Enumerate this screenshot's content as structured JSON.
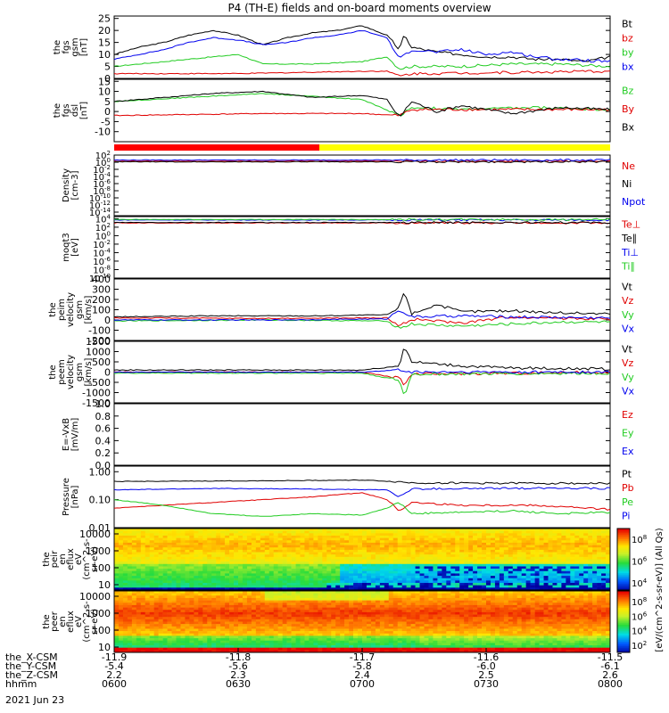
{
  "title": "P4 (TH-E) fields and on-board moments overview",
  "colors": {
    "black": "#000000",
    "red": "#e00000",
    "green": "#22cc22",
    "blue": "#0000ee",
    "yellow": "#ffff00",
    "state_red": "#ff0000"
  },
  "chart_data": [
    {
      "type": "line",
      "panel": "fgs_gsm",
      "ylabel": [
        "the",
        "fgs",
        "gsm",
        "[nT]"
      ],
      "ylim": [
        0,
        26
      ],
      "yticks": [
        "0",
        "5",
        "10",
        "15",
        "20",
        "25"
      ],
      "series": [
        {
          "name": "Bt",
          "color": "#000000",
          "x": [
            0,
            10,
            20,
            30,
            40,
            50,
            60,
            70,
            75,
            80,
            90,
            100,
            110,
            115,
            117,
            120,
            130,
            140,
            150,
            160,
            170,
            180,
            190,
            200
          ],
          "y": [
            10,
            13,
            15,
            18,
            20,
            18,
            14,
            17,
            18,
            19,
            20,
            22,
            18,
            12,
            18,
            13,
            11,
            10,
            9,
            9,
            8,
            8,
            7,
            9
          ]
        },
        {
          "name": "bz",
          "color": "#e00000",
          "x": [
            0,
            50,
            100,
            110,
            115,
            120,
            200
          ],
          "y": [
            2,
            2,
            3,
            3,
            1,
            2,
            3
          ]
        },
        {
          "name": "by",
          "color": "#22cc22",
          "x": [
            0,
            20,
            40,
            50,
            60,
            80,
            100,
            110,
            115,
            120,
            140,
            160,
            180,
            200
          ],
          "y": [
            5,
            7,
            9,
            10,
            6,
            6,
            7,
            9,
            4,
            5,
            5,
            6,
            6,
            5
          ]
        },
        {
          "name": "bx",
          "color": "#0000ee",
          "x": [
            0,
            10,
            20,
            30,
            40,
            50,
            60,
            70,
            80,
            90,
            100,
            110,
            115,
            120,
            130,
            140,
            150,
            160,
            170,
            180,
            200
          ],
          "y": [
            8,
            10,
            12,
            15,
            17,
            16,
            14,
            15,
            17,
            18,
            20,
            17,
            8,
            12,
            11,
            12,
            10,
            11,
            9,
            8,
            7
          ]
        }
      ]
    },
    {
      "type": "line",
      "panel": "fgs_dsl",
      "ylabel": [
        "the",
        "fgs",
        "dsl",
        "[nT]"
      ],
      "ylim": [
        -15,
        16
      ],
      "yticks": [
        "-10",
        "-5",
        "0",
        "5",
        "10",
        "15"
      ],
      "series": [
        {
          "name": "Bz",
          "color": "#22cc22",
          "x": [
            0,
            30,
            60,
            100,
            115,
            120,
            140,
            170,
            200
          ],
          "y": [
            5,
            7,
            9,
            6,
            -2,
            2,
            1,
            2,
            1
          ]
        },
        {
          "name": "By",
          "color": "#e00000",
          "x": [
            0,
            60,
            100,
            115,
            120,
            200
          ],
          "y": [
            -2,
            -1,
            -1,
            -2,
            1,
            1
          ]
        },
        {
          "name": "Bx",
          "color": "#000000",
          "x": [
            0,
            20,
            40,
            60,
            80,
            100,
            110,
            115,
            120,
            130,
            140,
            160,
            180,
            200
          ],
          "y": [
            5,
            7,
            9,
            10,
            7,
            8,
            6,
            -3,
            5,
            0,
            3,
            -1,
            2,
            1
          ]
        }
      ]
    },
    {
      "type": "line",
      "panel": "density",
      "log": true,
      "ylabel": [
        "Density",
        "[cm-3]"
      ],
      "ylim": [
        -15,
        2
      ],
      "yticks": [
        {
          "b": "10",
          "e": "2"
        },
        {
          "b": "10",
          "e": "0"
        },
        {
          "b": "10",
          "e": "-2"
        },
        {
          "b": "10",
          "e": "-4"
        },
        {
          "b": "10",
          "e": "-6"
        },
        {
          "b": "10",
          "e": "-8"
        },
        {
          "b": "10",
          "e": "-10"
        },
        {
          "b": "10",
          "e": "-12"
        },
        {
          "b": "10",
          "e": "-14"
        }
      ],
      "series": [
        {
          "name": "Ne",
          "color": "#e00000",
          "x": [
            0,
            200
          ],
          "y": [
            0.3,
            0.3
          ]
        },
        {
          "name": "Ni",
          "color": "#000000",
          "x": [
            0,
            200
          ],
          "y": [
            0.1,
            0.1
          ]
        },
        {
          "name": "Npot",
          "color": "#0000ee",
          "x": [
            0,
            200
          ],
          "y": [
            0.6,
            0.6
          ]
        }
      ]
    },
    {
      "type": "line",
      "panel": "temperature",
      "log": true,
      "ylabel": [
        "moqt3",
        "[eV]"
      ],
      "ylim": [
        -10,
        4.5
      ],
      "yticks": [
        {
          "b": "10",
          "e": "4"
        },
        {
          "b": "10",
          "e": "2"
        },
        {
          "b": "10",
          "e": "0"
        },
        {
          "b": "10",
          "e": "-2"
        },
        {
          "b": "10",
          "e": "-4"
        },
        {
          "b": "10",
          "e": "-6"
        },
        {
          "b": "10",
          "e": "-8"
        },
        {
          "b": "10",
          "e": "-10"
        }
      ],
      "series": [
        {
          "name": "Te⊥",
          "color": "#e00000",
          "x": [
            0,
            200
          ],
          "y": [
            3.0,
            3.0
          ]
        },
        {
          "name": "Te∥",
          "color": "#000000",
          "x": [
            0,
            200
          ],
          "y": [
            3.1,
            3.1
          ]
        },
        {
          "name": "Ti⊥",
          "color": "#0000ee",
          "x": [
            0,
            200
          ],
          "y": [
            3.7,
            3.7
          ]
        },
        {
          "name": "Ti∥",
          "color": "#22cc22",
          "x": [
            0,
            200
          ],
          "y": [
            3.8,
            3.8
          ]
        }
      ]
    },
    {
      "type": "line",
      "panel": "peim_velocity",
      "ylabel": [
        "the",
        "peim",
        "velocity",
        "gsm",
        "[km/s]"
      ],
      "ylim": [
        -200,
        400
      ],
      "yticks": [
        "-200",
        "-100",
        "0",
        "100",
        "200",
        "300",
        "400"
      ],
      "series": [
        {
          "name": "Vt",
          "color": "#000000",
          "x": [
            0,
            40,
            80,
            110,
            115,
            117,
            120,
            130,
            140,
            160,
            180,
            200
          ],
          "y": [
            30,
            40,
            40,
            50,
            120,
            290,
            60,
            150,
            80,
            90,
            70,
            60
          ]
        },
        {
          "name": "Vz",
          "color": "#e00000",
          "x": [
            0,
            60,
            110,
            115,
            120,
            140,
            160,
            200
          ],
          "y": [
            20,
            15,
            20,
            -60,
            10,
            -30,
            30,
            10
          ]
        },
        {
          "name": "Vy",
          "color": "#22cc22",
          "x": [
            0,
            60,
            110,
            115,
            120,
            140,
            180,
            200
          ],
          "y": [
            -10,
            0,
            -10,
            -80,
            -40,
            -60,
            -20,
            -20
          ]
        },
        {
          "name": "Vx",
          "color": "#0000ee",
          "x": [
            0,
            60,
            110,
            115,
            120,
            140,
            160,
            200
          ],
          "y": [
            0,
            0,
            10,
            100,
            30,
            40,
            30,
            20
          ]
        }
      ]
    },
    {
      "type": "line",
      "panel": "peem_velocity",
      "ylabel": [
        "the",
        "peem",
        "velocity",
        "gsm",
        "[km/s]"
      ],
      "ylim": [
        -1500,
        1500
      ],
      "yticks": [
        "-1500",
        "-1000",
        "-500",
        "0",
        "500",
        "1000",
        "1500"
      ],
      "series": [
        {
          "name": "Vt",
          "color": "#000000",
          "x": [
            0,
            100,
            115,
            117,
            120,
            140,
            160,
            200
          ],
          "y": [
            100,
            100,
            300,
            1300,
            500,
            300,
            200,
            150
          ]
        },
        {
          "name": "Vz",
          "color": "#e00000",
          "x": [
            0,
            100,
            115,
            117,
            120,
            160,
            200
          ],
          "y": [
            0,
            0,
            -300,
            -600,
            -100,
            -50,
            0
          ]
        },
        {
          "name": "Vy",
          "color": "#22cc22",
          "x": [
            0,
            100,
            115,
            117,
            120,
            200
          ],
          "y": [
            -50,
            -50,
            -400,
            -1200,
            -100,
            -50
          ]
        },
        {
          "name": "Vx",
          "color": "#0000ee",
          "x": [
            0,
            100,
            115,
            120,
            200
          ],
          "y": [
            0,
            0,
            100,
            0,
            0
          ]
        }
      ]
    },
    {
      "type": "line",
      "panel": "efield",
      "ylabel": [
        "E=-VxB",
        "[mV/m]"
      ],
      "ylim": [
        0,
        1.0
      ],
      "yticks": [
        "0.0",
        "0.2",
        "0.4",
        "0.6",
        "0.8",
        "1.0"
      ],
      "series": [
        {
          "name": "Ez",
          "color": "#e00000",
          "x": [],
          "y": []
        },
        {
          "name": "Ey",
          "color": "#22cc22",
          "x": [],
          "y": []
        },
        {
          "name": "Ex",
          "color": "#0000ee",
          "x": [],
          "y": []
        }
      ]
    },
    {
      "type": "line",
      "panel": "pressure",
      "log": true,
      "ylabel": [
        "Pressure",
        "[nPa]"
      ],
      "ylim": [
        -2,
        0.2
      ],
      "yticks": [
        "1.00",
        "0.10",
        "0.01"
      ],
      "series": [
        {
          "name": "Pt",
          "color": "#000000",
          "x": [
            0,
            50,
            100,
            115,
            120,
            200
          ],
          "y": [
            -0.35,
            -0.33,
            -0.3,
            -0.36,
            -0.4,
            -0.42
          ]
        },
        {
          "name": "Pb",
          "color": "#e00000",
          "x": [
            0,
            40,
            80,
            100,
            110,
            115,
            120,
            140,
            170,
            200
          ],
          "y": [
            -1.3,
            -1.1,
            -0.9,
            -0.75,
            -1.0,
            -1.4,
            -1.1,
            -1.2,
            -1.2,
            -1.35
          ]
        },
        {
          "name": "Pe",
          "color": "#22cc22",
          "x": [
            0,
            20,
            40,
            60,
            80,
            100,
            110,
            115,
            120,
            140,
            160,
            180,
            200
          ],
          "y": [
            -1.0,
            -1.2,
            -1.5,
            -1.6,
            -1.5,
            -1.55,
            -1.3,
            -1.1,
            -1.5,
            -1.45,
            -1.4,
            -1.5,
            -1.45
          ]
        },
        {
          "name": "Pi",
          "color": "#0000ee",
          "x": [
            0,
            40,
            80,
            110,
            115,
            120,
            150,
            180,
            200
          ],
          "y": [
            -0.65,
            -0.6,
            -0.62,
            -0.65,
            -0.9,
            -0.62,
            -0.6,
            -0.58,
            -0.6
          ]
        }
      ]
    },
    {
      "type": "heatmap",
      "panel": "peir_spectrogram",
      "ylabel": [
        "the",
        "peir",
        "en",
        "eflux",
        "eV",
        "(cm^2-s-",
        "sr-eV)"
      ],
      "yticks": [
        "10",
        "100",
        "1000",
        "10000"
      ]
    },
    {
      "type": "heatmap",
      "panel": "peer_spectrogram",
      "ylabel": [
        "the",
        "peer",
        "en",
        "eflux",
        "eV",
        "(cm^2-s-",
        "sr-eV)"
      ],
      "yticks": [
        "10",
        "100",
        "1000",
        "10000"
      ]
    }
  ],
  "colorbar": {
    "label": "[eV/(cm^2-s-sr-eV)] (All Qs)",
    "top_ticks": [
      {
        "b": "10",
        "e": "8"
      },
      {
        "b": "10",
        "e": "6"
      },
      {
        "b": "10",
        "e": "4"
      }
    ],
    "bottom_ticks": [
      {
        "b": "10",
        "e": "8"
      },
      {
        "b": "10",
        "e": "6"
      },
      {
        "b": "10",
        "e": "4"
      },
      {
        "b": "10",
        "e": "2"
      }
    ]
  },
  "xaxis": {
    "row_labels": [
      "the_X-CSM",
      "the_Y-CSM",
      "the_Z-CSM",
      "hhmm",
      "2021 Jun 23"
    ],
    "ticks": [
      {
        "x": "-11.9",
        "y": "-5.4",
        "z": "2.2",
        "t": "0600"
      },
      {
        "x": "-11.8",
        "y": "-5.6",
        "z": "2.3",
        "t": "0630"
      },
      {
        "x": "-11.7",
        "y": "-5.8",
        "z": "2.4",
        "t": "0700"
      },
      {
        "x": "-11.6",
        "y": "-6.0",
        "z": "2.5",
        "t": "0730"
      },
      {
        "x": "-11.5",
        "y": "-6.1",
        "z": "2.6",
        "t": "0800"
      }
    ]
  }
}
